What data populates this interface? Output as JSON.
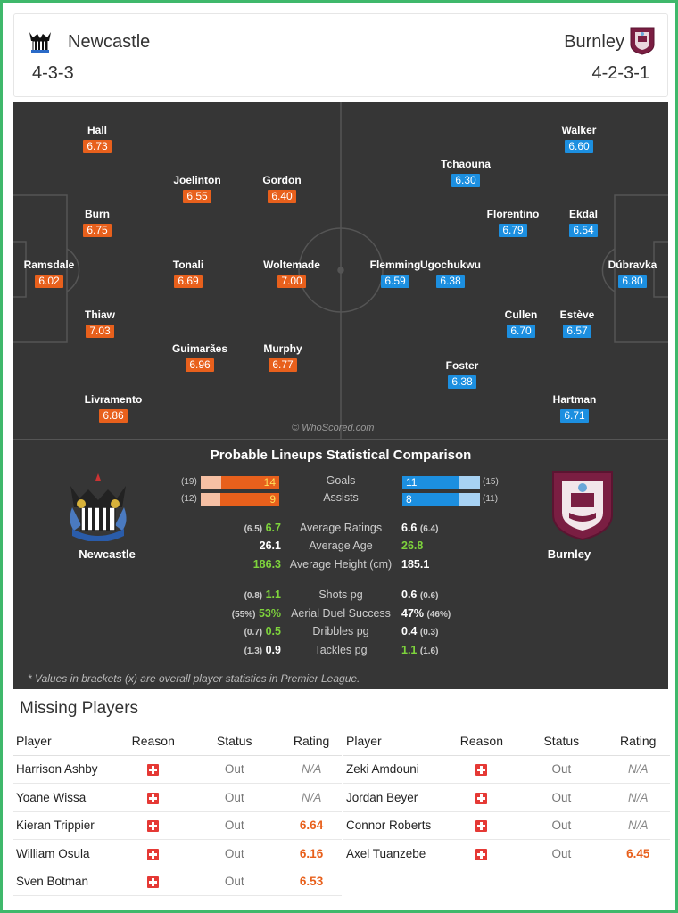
{
  "header": {
    "home": {
      "name": "Newcastle",
      "formation": "4-3-3"
    },
    "away": {
      "name": "Burnley",
      "formation": "4-2-3-1"
    }
  },
  "pitch": {
    "watermark": "© WhoScored.com",
    "home_players": [
      {
        "name": "Hall",
        "rating": "6.73"
      },
      {
        "name": "Joelinton",
        "rating": "6.55"
      },
      {
        "name": "Gordon",
        "rating": "6.40"
      },
      {
        "name": "Burn",
        "rating": "6.75"
      },
      {
        "name": "Ramsdale",
        "rating": "6.02"
      },
      {
        "name": "Tonali",
        "rating": "6.69"
      },
      {
        "name": "Woltemade",
        "rating": "7.00"
      },
      {
        "name": "Thiaw",
        "rating": "7.03"
      },
      {
        "name": "Guimarães",
        "rating": "6.96"
      },
      {
        "name": "Murphy",
        "rating": "6.77"
      },
      {
        "name": "Livramento",
        "rating": "6.86"
      }
    ],
    "away_players": [
      {
        "name": "Walker",
        "rating": "6.60"
      },
      {
        "name": "Tchaouna",
        "rating": "6.30"
      },
      {
        "name": "Florentino",
        "rating": "6.79"
      },
      {
        "name": "Ekdal",
        "rating": "6.54"
      },
      {
        "name": "Flemming",
        "rating": "6.59"
      },
      {
        "name": "Ugochukwu",
        "rating": "6.38"
      },
      {
        "name": "Dúbravka",
        "rating": "6.80"
      },
      {
        "name": "Cullen",
        "rating": "6.70"
      },
      {
        "name": "Estève",
        "rating": "6.57"
      },
      {
        "name": "Foster",
        "rating": "6.38"
      },
      {
        "name": "Hartman",
        "rating": "6.71"
      }
    ]
  },
  "comparison": {
    "title": "Probable Lineups Statistical Comparison",
    "home_team": "Newcastle",
    "away_team": "Burnley",
    "bars": [
      {
        "label": "Goals",
        "home": "14",
        "home_overall": "(19)",
        "home_frac": 0.737,
        "away": "11",
        "away_overall": "(15)",
        "away_frac": 0.733
      },
      {
        "label": "Assists",
        "home": "9",
        "home_overall": "(12)",
        "home_frac": 0.75,
        "away": "8",
        "away_overall": "(11)",
        "away_frac": 0.727
      }
    ],
    "group1": [
      {
        "label": "Average Ratings",
        "home_b": "(6.5)",
        "home": "6.7",
        "away": "6.6",
        "away_b": "(6.4)",
        "winner": "home"
      },
      {
        "label": "Average Age",
        "home_b": "",
        "home": "26.1",
        "away": "26.8",
        "away_b": "",
        "winner": "away"
      },
      {
        "label": "Average Height (cm)",
        "home_b": "",
        "home": "186.3",
        "away": "185.1",
        "away_b": "",
        "winner": "home"
      }
    ],
    "group2": [
      {
        "label": "Shots pg",
        "home_b": "(0.8)",
        "home": "1.1",
        "away": "0.6",
        "away_b": "(0.6)",
        "winner": "home"
      },
      {
        "label": "Aerial Duel Success",
        "home_b": "(55%)",
        "home": "53%",
        "away": "47%",
        "away_b": "(46%)",
        "winner": "home"
      },
      {
        "label": "Dribbles pg",
        "home_b": "(0.7)",
        "home": "0.5",
        "away": "0.4",
        "away_b": "(0.3)",
        "winner": "home"
      },
      {
        "label": "Tackles pg",
        "home_b": "(1.3)",
        "home": "0.9",
        "away": "1.1",
        "away_b": "(1.6)",
        "winner": "away"
      }
    ],
    "footnote": "* Values in brackets (x) are overall player statistics in Premier League."
  },
  "missing": {
    "title": "Missing Players",
    "columns": [
      "Player",
      "Reason",
      "Status",
      "Rating"
    ],
    "home": [
      {
        "player": "Harrison Ashby",
        "status": "Out",
        "rating": "N/A"
      },
      {
        "player": "Yoane Wissa",
        "status": "Out",
        "rating": "N/A"
      },
      {
        "player": "Kieran Trippier",
        "status": "Out",
        "rating": "6.64"
      },
      {
        "player": "William Osula",
        "status": "Out",
        "rating": "6.16"
      },
      {
        "player": "Sven Botman",
        "status": "Out",
        "rating": "6.53"
      }
    ],
    "away": [
      {
        "player": "Zeki Amdouni",
        "status": "Out",
        "rating": "N/A"
      },
      {
        "player": "Jordan Beyer",
        "status": "Out",
        "rating": "N/A"
      },
      {
        "player": "Connor Roberts",
        "status": "Out",
        "rating": "N/A"
      },
      {
        "player": "Axel Tuanzebe",
        "status": "Out",
        "rating": "6.45"
      }
    ]
  }
}
